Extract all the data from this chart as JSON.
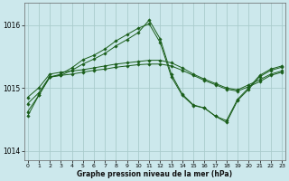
{
  "title": "Graphe pression niveau de la mer (hPa)",
  "background_color": "#cce8ec",
  "grid_color": "#aacccc",
  "line_color": "#1a5e1a",
  "xlim": [
    -0.3,
    23.3
  ],
  "ylim": [
    1013.85,
    1016.35
  ],
  "yticks": [
    1014,
    1015,
    1016
  ],
  "xticks": [
    0,
    1,
    2,
    3,
    4,
    5,
    6,
    7,
    8,
    9,
    10,
    11,
    12,
    13,
    14,
    15,
    16,
    17,
    18,
    19,
    20,
    21,
    22,
    23
  ],
  "series": [
    [
      1014.75,
      1014.92,
      1015.18,
      1015.2,
      1015.22,
      1015.25,
      1015.28,
      1015.3,
      1015.33,
      1015.35,
      1015.37,
      1015.38,
      1015.38,
      1015.35,
      1015.28,
      1015.2,
      1015.12,
      1015.05,
      1014.98,
      1014.95,
      1015.02,
      1015.1,
      1015.2,
      1015.25
    ],
    [
      1014.85,
      1015.0,
      1015.22,
      1015.25,
      1015.27,
      1015.29,
      1015.32,
      1015.35,
      1015.38,
      1015.4,
      1015.42,
      1015.44,
      1015.44,
      1015.4,
      1015.32,
      1015.22,
      1015.14,
      1015.07,
      1015.0,
      1014.97,
      1015.05,
      1015.13,
      1015.22,
      1015.27
    ],
    [
      1014.62,
      1014.88,
      1015.17,
      1015.22,
      1015.32,
      1015.45,
      1015.52,
      1015.62,
      1015.75,
      1015.85,
      1015.95,
      1016.02,
      1015.72,
      1015.18,
      1014.88,
      1014.72,
      1014.68,
      1014.55,
      1014.48,
      1014.82,
      1015.0,
      1015.2,
      1015.3,
      1015.35
    ],
    [
      1014.55,
      1014.88,
      1015.17,
      1015.2,
      1015.28,
      1015.38,
      1015.46,
      1015.55,
      1015.67,
      1015.77,
      1015.88,
      1016.08,
      1015.78,
      1015.22,
      1014.9,
      1014.73,
      1014.68,
      1014.55,
      1014.45,
      1014.8,
      1014.98,
      1015.18,
      1015.28,
      1015.33
    ]
  ]
}
